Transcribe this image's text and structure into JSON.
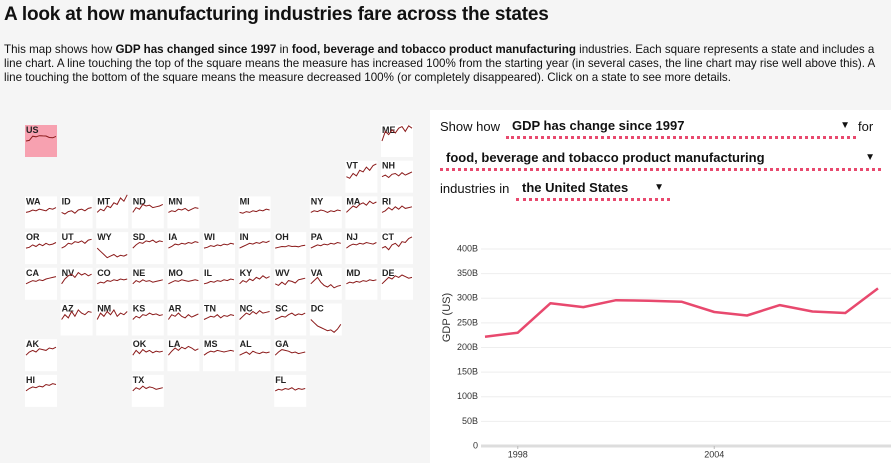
{
  "header": {
    "title": "A look at how manufacturing industries fare across the states"
  },
  "intro": [
    {
      "text": "This map shows how "
    },
    {
      "text": "GDP has changed since 1997",
      "bold": true
    },
    {
      "text": " in "
    },
    {
      "text": "food, beverage and tobacco product manufacturing",
      "bold": true
    },
    {
      "text": " industries. Each square represents a state and includes a line chart. A line touching the top of the square means the measure has increased 100% from the starting year (in several cases, the line chart may rise well above this). A line touching the bottom of the square means the measure decreased 100% (or completely disappeared). Click on a state to see more details."
    }
  ],
  "tile_map": {
    "range": [
      -100,
      100
    ],
    "states": [
      {
        "label": "US",
        "selected": true,
        "values": [
          0,
          4,
          30,
          26,
          33,
          32,
          31,
          22,
          20,
          29
        ]
      },
      {
        "label": "ME",
        "values": [
          0,
          60,
          40,
          70,
          50,
          80,
          90,
          60,
          95,
          80
        ]
      },
      {
        "label": "VT",
        "values": [
          0,
          -10,
          20,
          5,
          40,
          30,
          60,
          40,
          70,
          80
        ]
      },
      {
        "label": "NH",
        "values": [
          0,
          10,
          -5,
          15,
          20,
          5,
          25,
          10,
          20,
          30
        ]
      },
      {
        "label": "WA",
        "values": [
          0,
          5,
          15,
          10,
          20,
          15,
          10,
          25,
          20,
          30
        ]
      },
      {
        "label": "ID",
        "values": [
          0,
          -10,
          5,
          10,
          -5,
          15,
          20,
          10,
          25,
          30
        ]
      },
      {
        "label": "MT",
        "values": [
          0,
          20,
          10,
          40,
          30,
          60,
          50,
          90,
          70,
          110
        ]
      },
      {
        "label": "ND",
        "values": [
          0,
          30,
          20,
          50,
          40,
          45,
          30,
          35,
          40,
          50
        ]
      },
      {
        "label": "MN",
        "values": [
          0,
          10,
          5,
          20,
          15,
          25,
          10,
          20,
          30,
          25
        ]
      },
      {
        "label": "MI",
        "values": [
          0,
          -5,
          5,
          0,
          10,
          5,
          15,
          10,
          20,
          15
        ]
      },
      {
        "label": "NY",
        "values": [
          0,
          10,
          5,
          15,
          10,
          0,
          10,
          5,
          15,
          10
        ]
      },
      {
        "label": "MA",
        "values": [
          0,
          20,
          40,
          30,
          50,
          60,
          45,
          70,
          55,
          65
        ]
      },
      {
        "label": "RI",
        "values": [
          0,
          10,
          30,
          15,
          35,
          20,
          40,
          25,
          30,
          35
        ]
      },
      {
        "label": "OR",
        "values": [
          0,
          5,
          20,
          10,
          25,
          15,
          30,
          20,
          25,
          35
        ]
      },
      {
        "label": "UT",
        "values": [
          0,
          10,
          30,
          25,
          40,
          35,
          45,
          30,
          50,
          55
        ]
      },
      {
        "label": "WY",
        "values": [
          0,
          -20,
          -40,
          -60,
          -50,
          -40,
          -55,
          -45,
          -50,
          -40
        ]
      },
      {
        "label": "SD",
        "values": [
          0,
          20,
          35,
          30,
          45,
          40,
          50,
          35,
          45,
          40
        ]
      },
      {
        "label": "IA",
        "values": [
          0,
          10,
          25,
          20,
          30,
          25,
          35,
          30,
          40,
          35
        ]
      },
      {
        "label": "WI",
        "values": [
          0,
          5,
          15,
          10,
          20,
          15,
          25,
          20,
          30,
          25
        ]
      },
      {
        "label": "IN",
        "values": [
          0,
          10,
          20,
          30,
          25,
          35,
          30,
          40,
          35,
          45
        ]
      },
      {
        "label": "OH",
        "values": [
          0,
          5,
          10,
          8,
          15,
          10,
          12,
          8,
          15,
          18
        ]
      },
      {
        "label": "PA",
        "values": [
          0,
          10,
          20,
          15,
          25,
          20,
          30,
          25,
          35,
          30
        ]
      },
      {
        "label": "NJ",
        "values": [
          0,
          15,
          25,
          20,
          30,
          25,
          35,
          30,
          25,
          35
        ]
      },
      {
        "label": "CT",
        "values": [
          0,
          10,
          -10,
          20,
          30,
          10,
          40,
          35,
          60,
          70
        ]
      },
      {
        "label": "CA",
        "values": [
          0,
          10,
          20,
          15,
          25,
          20,
          30,
          35,
          40,
          45
        ]
      },
      {
        "label": "NV",
        "values": [
          0,
          30,
          50,
          60,
          40,
          70,
          55,
          65,
          50,
          60
        ]
      },
      {
        "label": "CO",
        "values": [
          0,
          10,
          5,
          20,
          15,
          25,
          20,
          30,
          25,
          30
        ]
      },
      {
        "label": "NE",
        "values": [
          0,
          20,
          10,
          25,
          15,
          20,
          10,
          15,
          20,
          25
        ]
      },
      {
        "label": "MO",
        "values": [
          0,
          10,
          20,
          15,
          25,
          20,
          15,
          20,
          25,
          20
        ]
      },
      {
        "label": "IL",
        "values": [
          0,
          5,
          15,
          10,
          20,
          15,
          25,
          20,
          30,
          25
        ]
      },
      {
        "label": "KY",
        "values": [
          0,
          20,
          10,
          30,
          20,
          40,
          30,
          50,
          35,
          45
        ]
      },
      {
        "label": "WV",
        "values": [
          0,
          -10,
          10,
          -5,
          20,
          15,
          5,
          25,
          30,
          35
        ]
      },
      {
        "label": "VA",
        "values": [
          0,
          20,
          40,
          10,
          -10,
          -20,
          -5,
          -25,
          -15,
          -10
        ]
      },
      {
        "label": "MD",
        "values": [
          0,
          10,
          5,
          15,
          10,
          20,
          15,
          25,
          20,
          25
        ]
      },
      {
        "label": "DE",
        "values": [
          0,
          20,
          40,
          30,
          50,
          40,
          55,
          45,
          35,
          40
        ]
      },
      {
        "label": "AZ",
        "values": [
          0,
          30,
          10,
          50,
          20,
          60,
          40,
          30,
          50,
          45
        ]
      },
      {
        "label": "NM",
        "values": [
          0,
          40,
          20,
          50,
          30,
          60,
          20,
          40,
          30,
          50
        ]
      },
      {
        "label": "KS",
        "values": [
          0,
          20,
          10,
          30,
          25,
          40,
          30,
          35,
          25,
          30
        ]
      },
      {
        "label": "AR",
        "values": [
          0,
          30,
          20,
          40,
          20,
          10,
          30,
          15,
          25,
          35
        ]
      },
      {
        "label": "TN",
        "values": [
          0,
          10,
          20,
          15,
          30,
          10,
          25,
          20,
          30,
          25
        ]
      },
      {
        "label": "NC",
        "values": [
          0,
          20,
          40,
          30,
          50,
          35,
          55,
          40,
          45,
          50
        ]
      },
      {
        "label": "SC",
        "values": [
          0,
          10,
          20,
          15,
          30,
          40,
          25,
          35,
          30,
          40
        ]
      },
      {
        "label": "DC",
        "values": [
          0,
          -20,
          -40,
          -50,
          -60,
          -70,
          -65,
          -80,
          -60,
          -30
        ]
      },
      {
        "label": "AK",
        "values": [
          0,
          20,
          30,
          20,
          40,
          35,
          30,
          45,
          40,
          50
        ]
      },
      {
        "label": "OK",
        "values": [
          0,
          30,
          10,
          35,
          20,
          30,
          15,
          25,
          20,
          25
        ]
      },
      {
        "label": "LA",
        "values": [
          0,
          25,
          45,
          30,
          50,
          40,
          55,
          45,
          30,
          40
        ]
      },
      {
        "label": "MS",
        "values": [
          0,
          15,
          25,
          20,
          30,
          25,
          20,
          25,
          30,
          25
        ]
      },
      {
        "label": "AL",
        "values": [
          0,
          10,
          20,
          5,
          25,
          15,
          10,
          20,
          15,
          20
        ]
      },
      {
        "label": "GA",
        "values": [
          0,
          20,
          35,
          30,
          25,
          15,
          20,
          10,
          15,
          20
        ]
      },
      {
        "label": "HI",
        "values": [
          0,
          15,
          25,
          20,
          30,
          25,
          40,
          35,
          45,
          40
        ]
      },
      {
        "label": "TX",
        "values": [
          0,
          20,
          10,
          30,
          15,
          25,
          20,
          10,
          15,
          20
        ]
      },
      {
        "label": "FL",
        "values": [
          0,
          10,
          5,
          15,
          10,
          20,
          5,
          15,
          10,
          15
        ]
      }
    ]
  },
  "controls": {
    "show_how": "Show how",
    "measure": "GDP has change since 1997",
    "for": "for",
    "industry": "food, beverage and tobacco product manufacturing",
    "industries_in": "industries in",
    "region": "the United States"
  },
  "chart_data": {
    "type": "line",
    "y_label": "GDP (US)",
    "x": [
      1997,
      1998,
      1999,
      2000,
      2001,
      2002,
      2003,
      2004,
      2005,
      2006,
      2007,
      2008,
      2009
    ],
    "series": [
      {
        "name": "GDP",
        "color": "#e8496e",
        "values": [
          222,
          230,
          290,
          282,
          296,
          295,
          293,
          272,
          265,
          286,
          273,
          270,
          320
        ]
      }
    ],
    "xlim": [
      1997,
      2009
    ],
    "xticks": [
      1998,
      2004
    ],
    "ylim": [
      0,
      400
    ],
    "yticks": [
      {
        "value": 0,
        "label": "0"
      },
      {
        "value": 50,
        "label": "50B"
      },
      {
        "value": 100,
        "label": "100B"
      },
      {
        "value": 150,
        "label": "150B"
      },
      {
        "value": 200,
        "label": "200B"
      },
      {
        "value": 250,
        "label": "250B"
      },
      {
        "value": 300,
        "label": "300B"
      },
      {
        "value": 350,
        "label": "350B"
      },
      {
        "value": 400,
        "label": "400B"
      }
    ],
    "grid": true
  }
}
